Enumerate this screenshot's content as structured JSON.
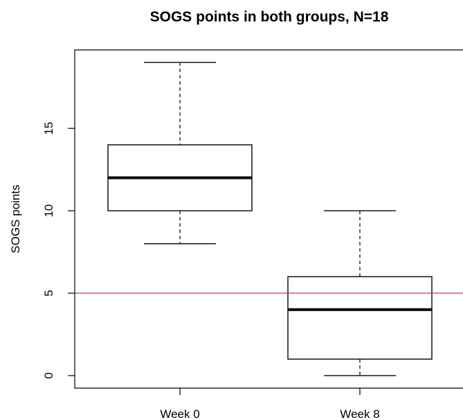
{
  "chart_data": {
    "type": "boxplot",
    "title": "SOGS points in both groups, N=18",
    "xlabel": "",
    "ylabel": "SOGS points",
    "categories": [
      "Week 0",
      "Week 8"
    ],
    "boxes": [
      {
        "name": "Week 0",
        "min": 8,
        "q1": 10,
        "median": 12,
        "q3": 14,
        "max": 19
      },
      {
        "name": "Week 8",
        "min": 0,
        "q1": 1,
        "median": 4,
        "q3": 6,
        "max": 10
      }
    ],
    "yticks": [
      0,
      5,
      10,
      15
    ],
    "ylim": [
      -0.76,
      19.76
    ],
    "reference_line": {
      "y": 5,
      "color": "#e03030"
    },
    "box_color": "#000000",
    "grid": false,
    "legend": "none"
  }
}
